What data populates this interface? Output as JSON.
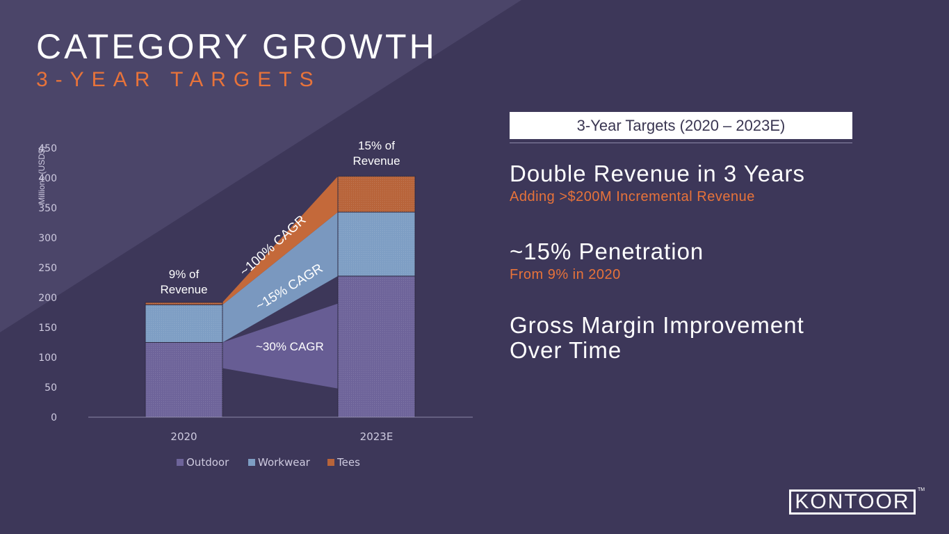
{
  "header": {
    "title": "CATEGORY GROWTH",
    "subtitle": "3-YEAR TARGETS"
  },
  "chart_data": {
    "type": "bar",
    "stacked": true,
    "categories": [
      "2020",
      "2023E"
    ],
    "series": [
      {
        "name": "Outdoor",
        "color": "#6e649a",
        "values": [
          125,
          236
        ]
      },
      {
        "name": "Workwear",
        "color": "#7e9ec4",
        "values": [
          63,
          107
        ]
      },
      {
        "name": "Tees",
        "color": "#b8643a",
        "values": [
          4,
          60
        ]
      }
    ],
    "ylabel": "Millions (USD$)",
    "ylim": [
      0,
      450
    ],
    "yticks": [
      "0",
      "50",
      "100",
      "150",
      "200",
      "250",
      "300",
      "350",
      "400",
      "450"
    ],
    "gridlines": false,
    "legend_position": "bottom",
    "annotations": {
      "bar_2020": [
        "9% of",
        "Revenue"
      ],
      "bar_2023": [
        "15% of",
        "Revenue"
      ],
      "cagr_tees": "~100% CAGR",
      "cagr_workwear": "~15% CAGR",
      "cagr_outdoor": "~30% CAGR"
    }
  },
  "targets": {
    "header": "3-Year Targets (2020 – 2023E)",
    "items": [
      {
        "headline": "Double Revenue in 3 Years",
        "detail": "Adding >$200M Incremental Revenue"
      },
      {
        "headline": "~15% Penetration",
        "detail": "From 9% in 2020"
      },
      {
        "headline": "Gross Margin Improvement",
        "headline2": "Over Time"
      }
    ]
  },
  "logo": {
    "text": "KONTOOR",
    "tm": "TM"
  },
  "colors": {
    "background": "#3d3759",
    "accent": "#e8733a",
    "diagonal": "#4b4569"
  }
}
